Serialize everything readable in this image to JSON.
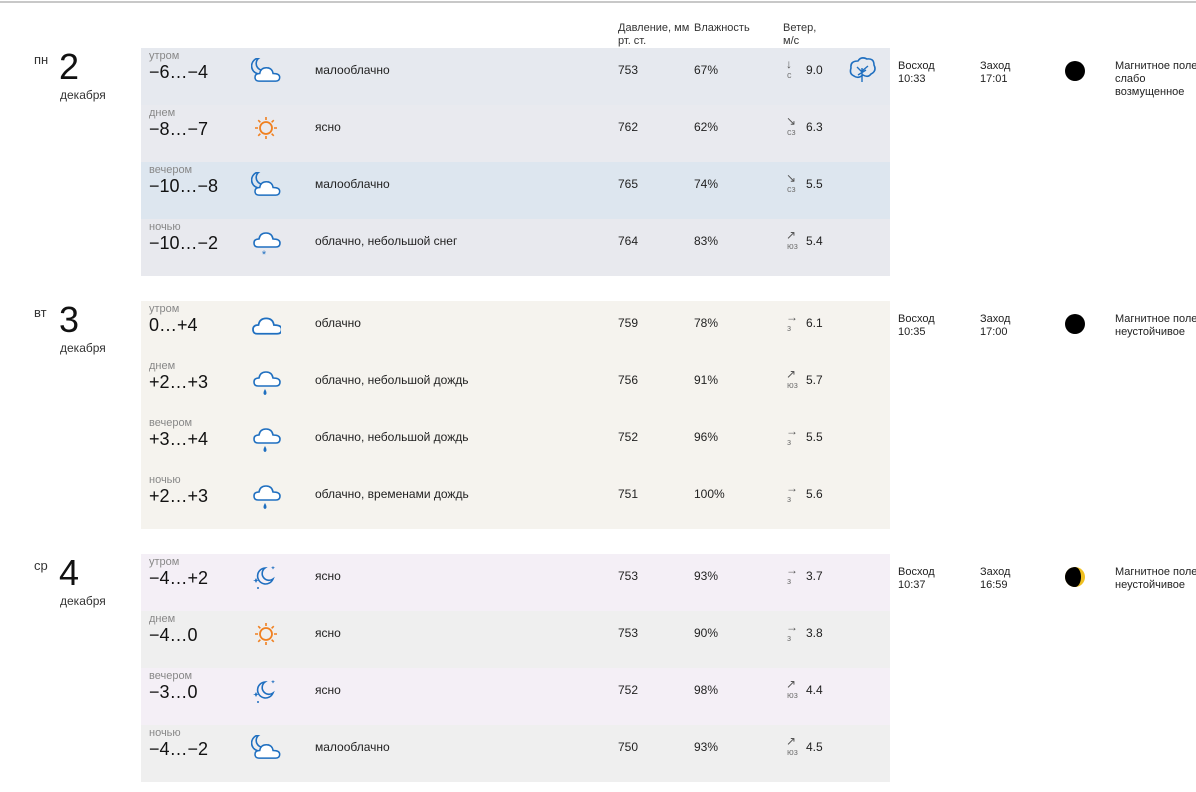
{
  "header": {
    "pressure": "Давление, мм рт. ст.",
    "humidity": "Влажность",
    "wind": "Ветер, м/с"
  },
  "days": [
    {
      "weekday": "пн",
      "day": "2",
      "month": "декабря",
      "sunrise_label": "Восход",
      "sunrise": "10:33",
      "sunset_label": "Заход",
      "sunset": "17:01",
      "magnetic": "Магнитное поле слабо возмущенное",
      "rows": [
        {
          "part": "утром",
          "temp": "−6…−4",
          "desc": "малооблачно",
          "pressure": "753",
          "humidity": "67%",
          "arrow": "↓",
          "wind_dir": "с",
          "wind": "9.0"
        },
        {
          "part": "днем",
          "temp": "−8…−7",
          "desc": "ясно",
          "pressure": "762",
          "humidity": "62%",
          "arrow": "↘",
          "wind_dir": "сз",
          "wind": "6.3"
        },
        {
          "part": "вечером",
          "temp": "−10…−8",
          "desc": "малооблачно",
          "pressure": "765",
          "humidity": "74%",
          "arrow": "↘",
          "wind_dir": "сз",
          "wind": "5.5"
        },
        {
          "part": "ночью",
          "temp": "−10…−2",
          "desc": "облачно, небольшой снег",
          "pressure": "764",
          "humidity": "83%",
          "arrow": "↗",
          "wind_dir": "юз",
          "wind": "5.4"
        }
      ]
    },
    {
      "weekday": "вт",
      "day": "3",
      "month": "декабря",
      "sunrise_label": "Восход",
      "sunrise": "10:35",
      "sunset_label": "Заход",
      "sunset": "17:00",
      "magnetic": "Магнитное поле неустойчивое",
      "rows": [
        {
          "part": "утром",
          "temp": "0…+4",
          "desc": "облачно",
          "pressure": "759",
          "humidity": "78%",
          "arrow": "→",
          "wind_dir": "з",
          "wind": "6.1"
        },
        {
          "part": "днем",
          "temp": "+2…+3",
          "desc": "облачно, небольшой дождь",
          "pressure": "756",
          "humidity": "91%",
          "arrow": "↗",
          "wind_dir": "юз",
          "wind": "5.7"
        },
        {
          "part": "вечером",
          "temp": "+3…+4",
          "desc": "облачно, небольшой дождь",
          "pressure": "752",
          "humidity": "96%",
          "arrow": "→",
          "wind_dir": "з",
          "wind": "5.5"
        },
        {
          "part": "ночью",
          "temp": "+2…+3",
          "desc": "облачно, временами дождь",
          "pressure": "751",
          "humidity": "100%",
          "arrow": "→",
          "wind_dir": "з",
          "wind": "5.6"
        }
      ]
    },
    {
      "weekday": "ср",
      "day": "4",
      "month": "декабря",
      "sunrise_label": "Восход",
      "sunrise": "10:37",
      "sunset_label": "Заход",
      "sunset": "16:59",
      "magnetic": "Магнитное поле неустойчивое",
      "rows": [
        {
          "part": "утром",
          "temp": "−4…+2",
          "desc": "ясно",
          "pressure": "753",
          "humidity": "93%",
          "arrow": "→",
          "wind_dir": "з",
          "wind": "3.7"
        },
        {
          "part": "днем",
          "temp": "−4…0",
          "desc": "ясно",
          "pressure": "753",
          "humidity": "90%",
          "arrow": "→",
          "wind_dir": "з",
          "wind": "3.8"
        },
        {
          "part": "вечером",
          "temp": "−3…0",
          "desc": "ясно",
          "pressure": "752",
          "humidity": "98%",
          "arrow": "↗",
          "wind_dir": "юз",
          "wind": "4.4"
        },
        {
          "part": "ночью",
          "temp": "−4…−2",
          "desc": "малооблачно",
          "pressure": "750",
          "humidity": "93%",
          "arrow": "↗",
          "wind_dir": "юз",
          "wind": "4.5"
        }
      ]
    }
  ]
}
